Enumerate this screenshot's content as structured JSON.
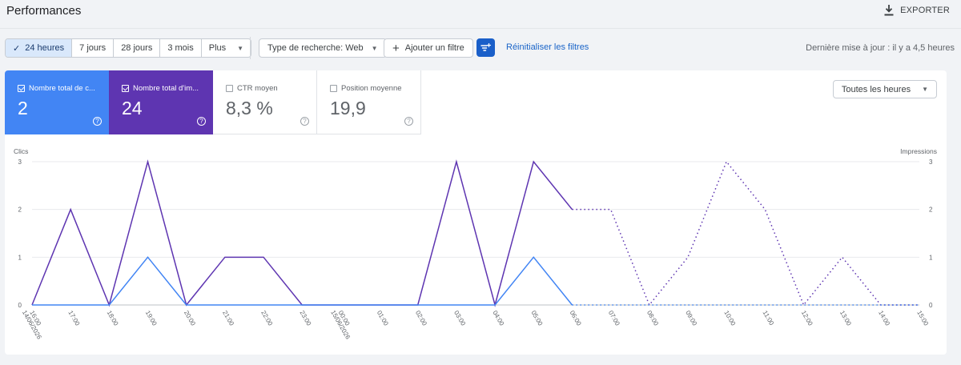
{
  "header": {
    "title": "Performances",
    "export_label": "EXPORTER"
  },
  "filters": {
    "date_ranges": [
      {
        "label": "24 heures",
        "active": true
      },
      {
        "label": "7 jours",
        "active": false
      },
      {
        "label": "28 jours",
        "active": false
      },
      {
        "label": "3 mois",
        "active": false
      },
      {
        "label": "Plus",
        "active": false
      }
    ],
    "search_type": "Type de recherche: Web",
    "add_filter": "Ajouter un filtre",
    "reset": "Réinitialiser les filtres",
    "last_update": "Dernière mise à jour : il y a 4,5 heures"
  },
  "metrics": {
    "clicks": {
      "label": "Nombre total de c...",
      "value": "2",
      "checked": true
    },
    "impressions": {
      "label": "Nombre total d'im...",
      "value": "24",
      "checked": true
    },
    "ctr": {
      "label": "CTR moyen",
      "value": "8,3 %",
      "checked": false
    },
    "position": {
      "label": "Position moyenne",
      "value": "19,9",
      "checked": false
    },
    "help_glyph": "?"
  },
  "hours_select": "Toutes les heures",
  "colors": {
    "clicks": "#4285f4",
    "impressions": "#5e35b1"
  },
  "chart_data": {
    "type": "line",
    "ylabel_left": "Clics",
    "ylabel_right": "Impressions",
    "ylim_left": [
      0,
      3
    ],
    "ylim_right": [
      0,
      3
    ],
    "yticks": [
      0,
      1,
      2,
      3
    ],
    "grid": true,
    "x": [
      "16:00\n14/06/2026",
      "17:00",
      "18:00",
      "19:00",
      "20:00",
      "21:00",
      "22:00",
      "23:00",
      "00:00\n15/06/2026",
      "01:00",
      "02:00",
      "03:00",
      "04:00",
      "05:00",
      "06:00",
      "07:00",
      "08:00",
      "09:00",
      "10:00",
      "11:00",
      "12:00",
      "13:00",
      "14:00",
      "15:00"
    ],
    "series": [
      {
        "name": "Clics",
        "axis": "left",
        "values": [
          0,
          0,
          0,
          1,
          0,
          0,
          0,
          0,
          0,
          0,
          0,
          0,
          0,
          1,
          0,
          0,
          0,
          0,
          0,
          0,
          0,
          0,
          0,
          0
        ],
        "solid_until_index": 14
      },
      {
        "name": "Impressions",
        "axis": "right",
        "values": [
          0,
          2,
          0,
          3,
          0,
          1,
          1,
          0,
          0,
          0,
          0,
          3,
          0,
          3,
          2,
          2,
          0,
          1,
          3,
          2,
          0,
          1,
          0,
          0
        ],
        "solid_until_index": 14
      }
    ]
  }
}
